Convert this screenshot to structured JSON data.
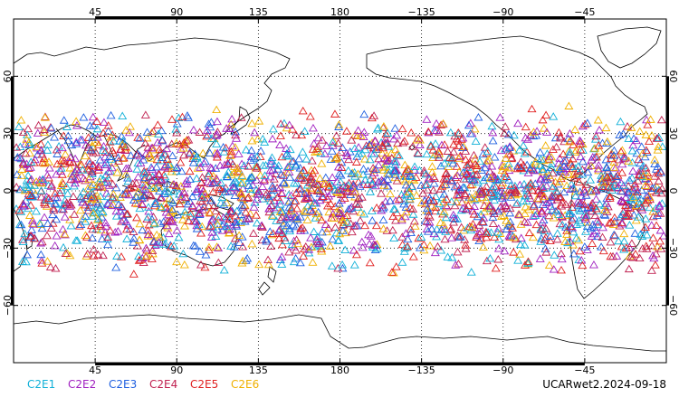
{
  "map": {
    "projection": "cylindrical-equidistant",
    "center_longitude": 180,
    "lon_ticks": [
      {
        "lon": 45,
        "label": "45"
      },
      {
        "lon": 90,
        "label": "90"
      },
      {
        "lon": 135,
        "label": "135"
      },
      {
        "lon": 180,
        "label": "180"
      },
      {
        "lon": 225,
        "label": "−135"
      },
      {
        "lon": 270,
        "label": "−90"
      },
      {
        "lon": 315,
        "label": "−45"
      }
    ],
    "lat_ticks": [
      {
        "lat": 60,
        "label": "60"
      },
      {
        "lat": 30,
        "label": "30"
      },
      {
        "lat": 0,
        "label": "0"
      },
      {
        "lat": -30,
        "label": "−30"
      },
      {
        "lat": -60,
        "label": "−60"
      }
    ],
    "lat_range": [
      -90,
      90
    ],
    "observation_lat_range": [
      -45,
      45
    ],
    "marker": "triangle-outline",
    "grid": "dotted",
    "coastline_color": "#000000"
  },
  "legend": {
    "items": [
      {
        "label": "C2E1",
        "color": "#10b0d8"
      },
      {
        "label": "C2E2",
        "color": "#a020c0"
      },
      {
        "label": "C2E3",
        "color": "#2060e0"
      },
      {
        "label": "C2E4",
        "color": "#c02050"
      },
      {
        "label": "C2E5",
        "color": "#e02020"
      },
      {
        "label": "C2E6",
        "color": "#f0b000"
      }
    ]
  },
  "footer": {
    "label": "UCARwet2.2024-09-18"
  }
}
